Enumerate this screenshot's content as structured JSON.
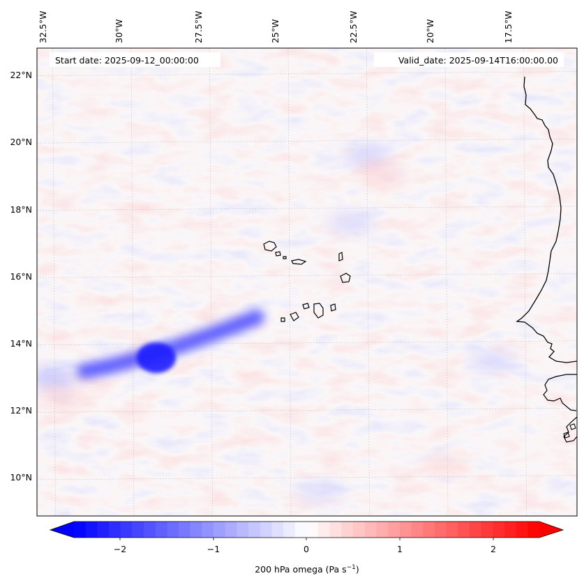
{
  "map": {
    "variable_label": "200 hPa omega (Pa s",
    "variable_unit_sup": "−1",
    "variable_label_close": ")",
    "start_date": "Start date: 2025-09-12_00:00:00",
    "valid_date": "Valid_date: 2025-09-14T16:00:00.00",
    "lon_labels": [
      "32.5°W",
      "30°W",
      "27.5°W",
      "25°W",
      "22.5°W",
      "20°W",
      "17.5°W"
    ],
    "lat_labels": [
      "22°N",
      "20°N",
      "18°N",
      "16°N",
      "14°N",
      "12°N",
      "10°N"
    ],
    "extent": {
      "lon_min": -33.0,
      "lon_max": -15.8,
      "lat_min": 8.9,
      "lat_max": 22.8
    },
    "gridlines": true,
    "colormap": "bwr",
    "colorbar_ticks": [
      "−2",
      "−1",
      "0",
      "1",
      "2"
    ],
    "colorbar_range": [
      -2.5,
      2.5
    ],
    "colors": {
      "negative": "#0000ff",
      "zero": "#ffffff",
      "positive": "#ff0000",
      "coastline": "#000000"
    }
  },
  "chart_data": {
    "type": "heatmap",
    "title": "",
    "colorbar_label": "200 hPa omega (Pa s−1)",
    "x_tick_labels": [
      "32.5°W",
      "30°W",
      "27.5°W",
      "25°W",
      "22.5°W",
      "20°W",
      "17.5°W"
    ],
    "y_tick_labels": [
      "22°N",
      "20°N",
      "18°N",
      "16°N",
      "14°N",
      "12°N",
      "10°N"
    ],
    "vmin": -2.5,
    "vmax": 2.5,
    "features": [
      {
        "name": "ascent-band",
        "lon_start": -31.5,
        "lat_start": 13.2,
        "lon_end": -26.0,
        "lat_end": 14.8,
        "value": -1.8
      },
      {
        "name": "ascent-core",
        "lon": -29.2,
        "lat": 13.6,
        "value": -2.2
      },
      {
        "name": "west-edge-ascent",
        "lon": -32.5,
        "lat": 13.0,
        "value": -1.0
      },
      {
        "name": "west-edge-descent",
        "lon": -32.2,
        "lat": 12.4,
        "value": 0.6
      },
      {
        "name": "senegal-coast-ascent",
        "lon": -18.5,
        "lat": 13.5,
        "value": -0.6
      },
      {
        "name": "band-north-ascent",
        "lon": -22.5,
        "lat": 19.6,
        "value": -0.7
      },
      {
        "name": "band-north-descent",
        "lon": -22.0,
        "lat": 19.0,
        "value": 0.6
      },
      {
        "name": "cape-verde-ascent",
        "lon": -23.0,
        "lat": 17.6,
        "value": -0.6
      },
      {
        "name": "south-ascent-strip",
        "lon": -24.0,
        "lat": 9.6,
        "value": -0.5
      },
      {
        "name": "south-descent",
        "lon": -20.0,
        "lat": 10.4,
        "value": 0.5
      }
    ]
  }
}
